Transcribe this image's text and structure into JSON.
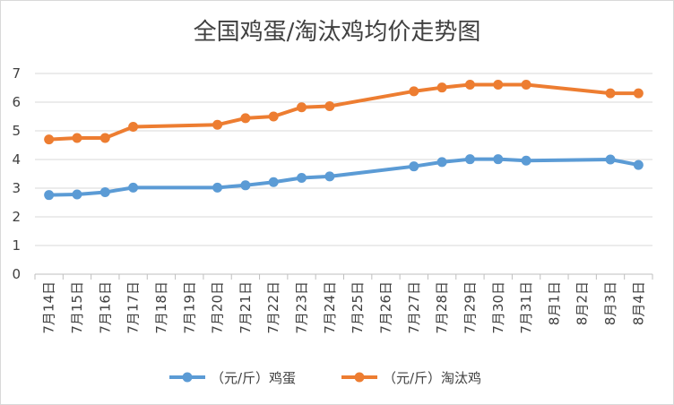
{
  "chart_data": {
    "type": "line",
    "title": "全国鸡蛋/淘汰鸡均价走势图",
    "xlabel": "",
    "ylabel": "",
    "ylim": [
      0,
      7
    ],
    "yticks": [
      "0",
      "1",
      "2",
      "3",
      "4",
      "5",
      "6",
      "7"
    ],
    "grid": true,
    "legend_position": "bottom",
    "categories": [
      "7月14日",
      "7月15日",
      "7月16日",
      "7月17日",
      "7月18日",
      "7月19日",
      "7月20日",
      "7月21日",
      "7月22日",
      "7月23日",
      "7月24日",
      "7月25日",
      "7月26日",
      "7月27日",
      "7月28日",
      "7月29日",
      "7月30日",
      "7月31日",
      "8月1日",
      "8月2日",
      "8月3日",
      "8月4日"
    ],
    "series": [
      {
        "name": "（元/斤）鸡蛋",
        "color": "#5b9bd5",
        "values": [
          2.76,
          2.78,
          2.86,
          3.02,
          null,
          null,
          3.02,
          3.1,
          3.21,
          3.36,
          3.41,
          null,
          null,
          3.76,
          3.91,
          4.01,
          4.01,
          3.96,
          null,
          null,
          4.0,
          3.81
        ]
      },
      {
        "name": "（元/斤）淘汰鸡",
        "color": "#ed7d31",
        "values": [
          4.7,
          4.75,
          4.75,
          5.14,
          null,
          null,
          5.21,
          5.44,
          5.5,
          5.82,
          5.86,
          null,
          null,
          6.38,
          6.51,
          6.61,
          6.61,
          6.61,
          null,
          null,
          6.31,
          6.31
        ]
      }
    ]
  }
}
